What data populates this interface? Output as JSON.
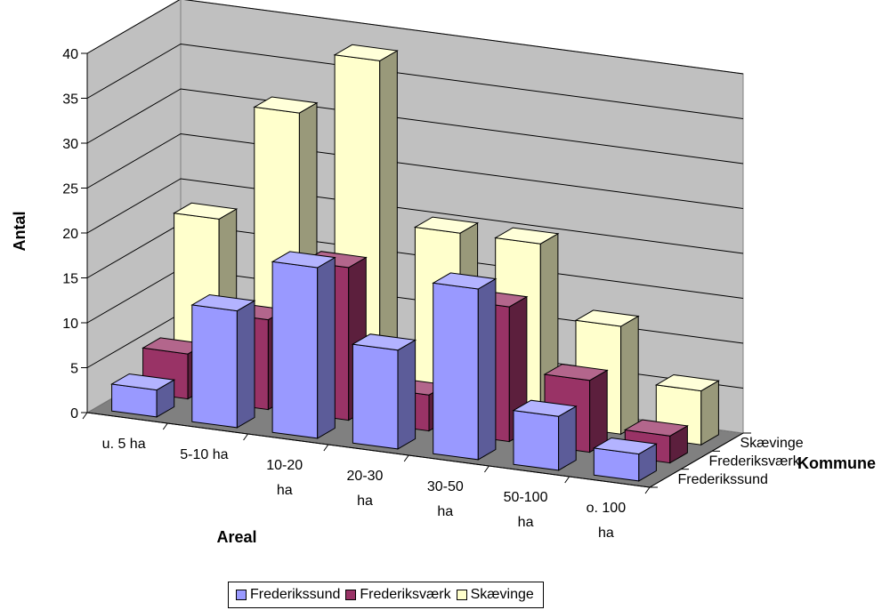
{
  "chart_data": {
    "type": "bar",
    "categories": [
      "u. 5 ha",
      "5-10 ha",
      "10-20 ha",
      "20-30 ha",
      "30-50 ha",
      "50-100 ha",
      "o. 100 ha"
    ],
    "category_lines": [
      [
        "u. 5 ha"
      ],
      [
        "5-10 ha"
      ],
      [
        "10-20",
        "ha"
      ],
      [
        "20-30",
        "ha"
      ],
      [
        "30-50",
        "ha"
      ],
      [
        "50-100",
        "ha"
      ],
      [
        "o. 100",
        "ha"
      ]
    ],
    "series": [
      {
        "name": "Frederikssund",
        "values": [
          3,
          13,
          19,
          11,
          19,
          6,
          3
        ],
        "color": "#9999ff"
      },
      {
        "name": "Frederiksværk",
        "values": [
          5,
          10,
          17,
          4,
          15,
          8,
          3
        ],
        "color": "#993366"
      },
      {
        "name": "Skævinge",
        "values": [
          18,
          31,
          38,
          20,
          20,
          12,
          6
        ],
        "color": "#ffffcc"
      }
    ],
    "depth_labels": [
      "Frederikssund",
      "Frederiksværk",
      "Skævinge"
    ],
    "ylabel": "Antal",
    "xlabel": "Areal",
    "zlabel": "Kommune",
    "ylim": [
      0,
      40
    ],
    "yticks": [
      0,
      5,
      10,
      15,
      20,
      25,
      30,
      35,
      40
    ],
    "grid": true,
    "legend": "bottom"
  }
}
